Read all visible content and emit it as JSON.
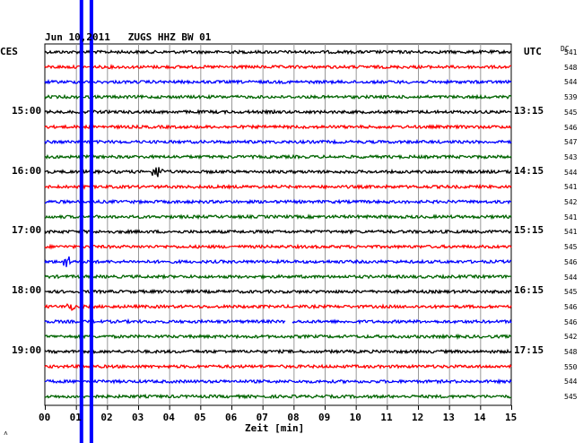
{
  "header": {
    "title": "Jun 10,2011   ZUGS HHZ BW 01",
    "left_zone": "CES",
    "right_zone": "UTC",
    "dc_label": "DC",
    "x_axis_label": "Zeit [min]",
    "corner_mark": "˄"
  },
  "chart_data": {
    "type": "line",
    "title": "Jun 10,2011   ZUGS HHZ BW 01",
    "xlabel": "Zeit [min]",
    "ylabel": "",
    "xlim": [
      0,
      15
    ],
    "x_ticks": [
      "00",
      "01",
      "02",
      "03",
      "04",
      "05",
      "06",
      "07",
      "08",
      "09",
      "10",
      "11",
      "12",
      "13",
      "14",
      "15"
    ],
    "trace_minutes": 15,
    "trace_colors": [
      "#000000",
      "#ff0000",
      "#0000ff",
      "#006400"
    ],
    "hour_labels_left": [
      "15:00",
      "16:00",
      "17:00",
      "18:00",
      "19:00"
    ],
    "hour_labels_right": [
      "13:15",
      "14:15",
      "15:15",
      "16:15",
      "17:15"
    ],
    "hour_label_rows": [
      4,
      8,
      12,
      16,
      20
    ],
    "dc_offsets": [
      541,
      548,
      544,
      539,
      545,
      546,
      547,
      543,
      544,
      541,
      542,
      541,
      541,
      545,
      546,
      544,
      545,
      546,
      546,
      542,
      548,
      550,
      544,
      545
    ],
    "events": [
      {
        "row": 8,
        "minute": 3.6,
        "amplitude": 7,
        "width_min": 0.25
      },
      {
        "row": 14,
        "minute": 0.7,
        "amplitude": 9,
        "width_min": 0.15
      },
      {
        "row": 17,
        "minute": 0.8,
        "amplitude": 4,
        "width_min": 0.2
      }
    ],
    "gaps": [
      {
        "row": 18,
        "start_minute": 7.75,
        "end_minute": 7.95
      }
    ],
    "vertical_markers": [
      {
        "minute": 0.6,
        "color": "#0000ff"
      },
      {
        "minute": 0.92,
        "color": "#0000ff"
      }
    ],
    "grid": true
  }
}
